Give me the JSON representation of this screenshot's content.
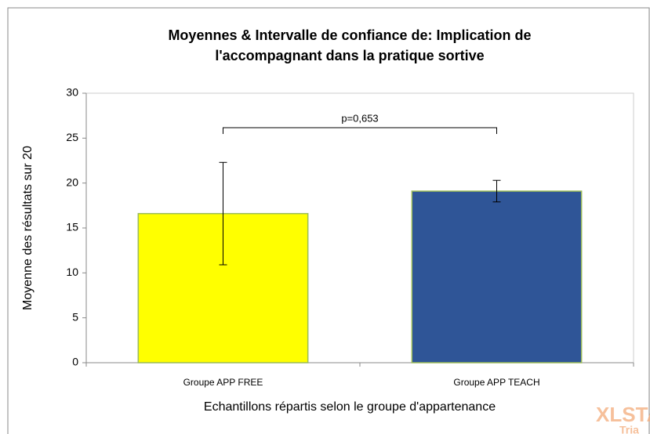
{
  "chart_data": {
    "type": "bar",
    "title": [
      "Moyennes & Intervalle de confiance de: Implication de",
      "l'accompagnant dans la pratique sortive"
    ],
    "x_label": "Echantillons répartis selon le groupe d'appartenance",
    "y_label": "Moyenne des résultats sur 20",
    "categories": [
      "Groupe APP FREE",
      "Groupe APP TEACH"
    ],
    "values": [
      16.6,
      19.1
    ],
    "errors": [
      5.7,
      1.2
    ],
    "colors": [
      "#ffff00",
      "#2f5597"
    ],
    "ylim": [
      0,
      30
    ],
    "yticks": [
      0,
      5,
      10,
      15,
      20,
      25,
      30
    ],
    "annotation": "p=0,653",
    "watermark": [
      "XLSTAT",
      "Tria"
    ]
  }
}
